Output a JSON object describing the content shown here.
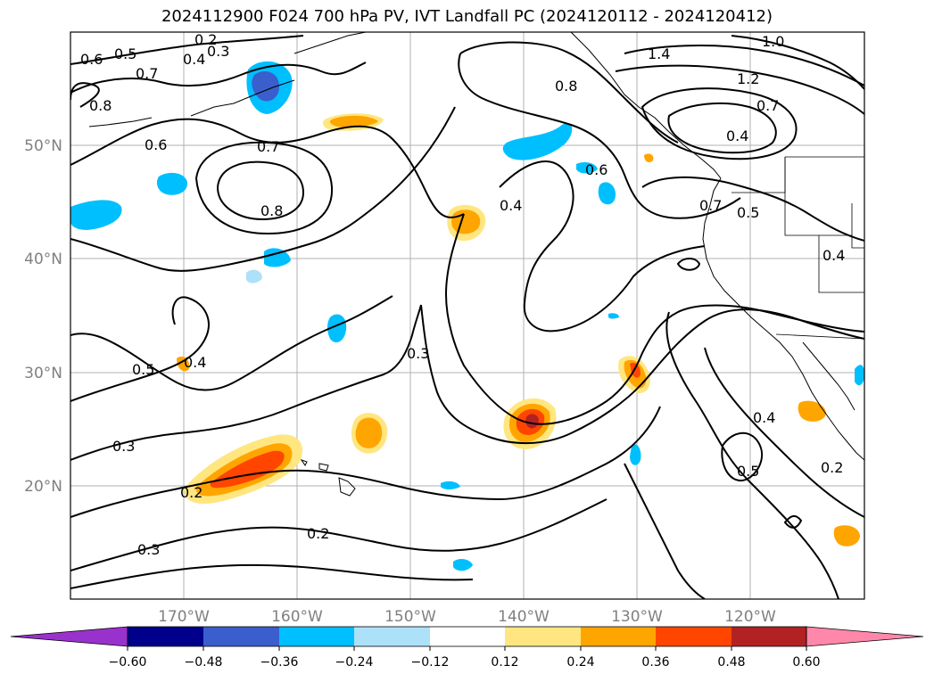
{
  "title": "2024112900 F024 700 hPa PV, IVT Landfall PC (2024120112 - 2024120412)",
  "map": {
    "lat_labels": [
      "50°N",
      "40°N",
      "30°N",
      "20°N"
    ],
    "lon_labels": [
      "170°W",
      "160°W",
      "150°W",
      "140°W",
      "130°W",
      "120°W"
    ],
    "contour_labels": [
      "0.2",
      "0.3",
      "0.4",
      "0.5",
      "0.6",
      "0.7",
      "0.8",
      "1.0",
      "1.2",
      "1.4"
    ]
  },
  "colorbar": {
    "ticks": [
      "−0.60",
      "−0.48",
      "−0.36",
      "−0.24",
      "−0.12",
      "0.12",
      "0.24",
      "0.36",
      "0.48",
      "0.60"
    ],
    "colors": [
      "#9932CC",
      "#00008B",
      "#3A5FCD",
      "#00BFFF",
      "#ADE1FA",
      "#FFFFFF",
      "#FFE680",
      "#FFA500",
      "#FF4500",
      "#B22222",
      "#FF88AA"
    ]
  }
}
